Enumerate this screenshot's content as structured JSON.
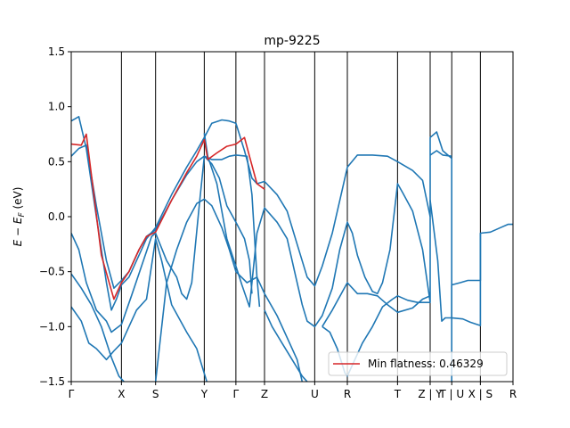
{
  "chart_data": {
    "type": "line",
    "title": "mp-9225",
    "xlabel": "",
    "ylabel": "E − E_F (eV)",
    "ylabel_parts": {
      "main": "E − E",
      "sub": "F",
      "unit": " (eV)"
    },
    "ylim": [
      -1.5,
      1.5
    ],
    "yticks": [
      -1.5,
      -1.0,
      -0.5,
      0.0,
      0.5,
      1.0,
      1.5
    ],
    "ytick_labels": [
      "−1.5",
      "−1.0",
      "−0.5",
      "0.0",
      "0.5",
      "1.0",
      "1.5"
    ],
    "xlim": [
      0,
      8.8
    ],
    "kpoints": [
      {
        "label": "Γ",
        "x": 0.0
      },
      {
        "label": "X",
        "x": 1.0
      },
      {
        "label": "S",
        "x": 1.68
      },
      {
        "label": "Y",
        "x": 2.65
      },
      {
        "label": "Γ",
        "x": 3.28
      },
      {
        "label": "Z",
        "x": 3.85
      },
      {
        "label": "U",
        "x": 4.85
      },
      {
        "label": "R",
        "x": 5.5
      },
      {
        "label": "T",
        "x": 6.5
      },
      {
        "label": "Z | Y",
        "x": 7.15
      },
      {
        "label": "T | U",
        "x": 7.58
      },
      {
        "label": "X | S",
        "x": 8.15
      },
      {
        "label": "R",
        "x": 8.8
      }
    ],
    "legend": {
      "entry": "Min flatness: 0.46329",
      "placement": "lower-right",
      "color": "#d62728"
    },
    "band_color": "#1f77b4",
    "highlight_color": "#d62728",
    "series": [
      {
        "values": [
          [
            0,
            0.87
          ],
          [
            0.15,
            0.91
          ],
          [
            0.3,
            0.62
          ],
          [
            0.5,
            0.0
          ],
          [
            0.7,
            -0.6
          ],
          [
            0.8,
            -0.85
          ],
          [
            0.9,
            -0.75
          ],
          [
            1.0,
            -0.62
          ],
          [
            1.15,
            -0.55
          ],
          [
            1.35,
            -0.35
          ],
          [
            1.5,
            -0.2
          ],
          [
            1.68,
            -0.1
          ],
          [
            2.0,
            0.2
          ],
          [
            2.3,
            0.45
          ],
          [
            2.5,
            0.6
          ],
          [
            2.65,
            0.72
          ],
          [
            2.8,
            0.85
          ],
          [
            3.0,
            0.88
          ],
          [
            3.15,
            0.87
          ],
          [
            3.28,
            0.85
          ],
          [
            3.45,
            0.6
          ],
          [
            3.6,
            0.35
          ],
          [
            3.7,
            0.3
          ],
          [
            3.85,
            0.32
          ],
          [
            4.1,
            0.2
          ],
          [
            4.3,
            0.05
          ],
          [
            4.5,
            -0.25
          ],
          [
            4.7,
            -0.55
          ],
          [
            4.85,
            -0.63
          ],
          [
            5.0,
            -0.45
          ],
          [
            5.2,
            -0.15
          ],
          [
            5.4,
            0.25
          ],
          [
            5.5,
            0.45
          ],
          [
            5.7,
            0.56
          ],
          [
            6.0,
            0.56
          ],
          [
            6.3,
            0.55
          ],
          [
            6.5,
            0.5
          ],
          [
            6.8,
            0.42
          ],
          [
            7.0,
            0.33
          ],
          [
            7.15,
            0.0
          ]
        ]
      },
      {
        "values": [
          [
            0,
            0.55
          ],
          [
            0.15,
            0.62
          ],
          [
            0.3,
            0.65
          ],
          [
            0.5,
            0.1
          ],
          [
            0.7,
            -0.4
          ],
          [
            0.85,
            -0.65
          ],
          [
            1.0,
            -0.58
          ],
          [
            1.15,
            -0.5
          ],
          [
            1.35,
            -0.3
          ],
          [
            1.5,
            -0.18
          ],
          [
            1.68,
            -0.12
          ],
          [
            2.0,
            0.15
          ],
          [
            2.3,
            0.38
          ],
          [
            2.5,
            0.5
          ],
          [
            2.65,
            0.55
          ],
          [
            2.8,
            0.52
          ],
          [
            3.0,
            0.52
          ],
          [
            3.15,
            0.55
          ],
          [
            3.28,
            0.56
          ],
          [
            3.5,
            0.55
          ],
          [
            3.6,
            0.2
          ],
          [
            3.7,
            -0.55
          ],
          [
            3.75,
            -0.82
          ]
        ]
      },
      {
        "values": [
          [
            0,
            -0.15
          ],
          [
            0.15,
            -0.3
          ],
          [
            0.3,
            -0.6
          ],
          [
            0.5,
            -0.85
          ],
          [
            0.7,
            -0.95
          ],
          [
            0.8,
            -1.05
          ],
          [
            1.0,
            -0.98
          ],
          [
            1.2,
            -0.72
          ],
          [
            1.4,
            -0.45
          ],
          [
            1.6,
            -0.18
          ],
          [
            1.68,
            -0.15
          ],
          [
            1.9,
            -0.4
          ],
          [
            2.1,
            -0.55
          ],
          [
            2.2,
            -0.7
          ],
          [
            2.3,
            -0.75
          ],
          [
            2.4,
            -0.6
          ],
          [
            2.55,
            0.1
          ],
          [
            2.65,
            0.55
          ],
          [
            2.8,
            0.48
          ],
          [
            2.95,
            0.35
          ],
          [
            3.1,
            0.1
          ],
          [
            3.28,
            -0.05
          ],
          [
            3.45,
            -0.2
          ],
          [
            3.55,
            -0.4
          ],
          [
            3.6,
            -0.7
          ]
        ]
      },
      {
        "values": [
          [
            0,
            -0.52
          ],
          [
            0.2,
            -0.65
          ],
          [
            0.4,
            -0.8
          ],
          [
            0.6,
            -1.0
          ],
          [
            0.8,
            -1.28
          ],
          [
            0.95,
            -1.45
          ],
          [
            1.05,
            -1.5
          ]
        ]
      },
      {
        "values": [
          [
            0,
            -0.82
          ],
          [
            0.2,
            -0.95
          ],
          [
            0.35,
            -1.15
          ],
          [
            0.5,
            -1.2
          ],
          [
            0.7,
            -1.3
          ],
          [
            0.85,
            -1.22
          ],
          [
            1.0,
            -1.15
          ],
          [
            1.15,
            -1.0
          ],
          [
            1.3,
            -0.85
          ],
          [
            1.5,
            -0.75
          ],
          [
            1.68,
            -0.2
          ],
          [
            1.8,
            -0.4
          ],
          [
            2.0,
            -0.8
          ],
          [
            2.3,
            -1.05
          ],
          [
            2.5,
            -1.2
          ],
          [
            2.6,
            -1.35
          ],
          [
            2.7,
            -1.5
          ]
        ]
      },
      {
        "values": [
          [
            1.68,
            -1.5
          ],
          [
            1.9,
            -0.6
          ],
          [
            2.1,
            -0.3
          ],
          [
            2.3,
            -0.05
          ],
          [
            2.5,
            0.12
          ],
          [
            2.65,
            0.16
          ],
          [
            2.8,
            0.1
          ],
          [
            3.0,
            -0.1
          ],
          [
            3.15,
            -0.3
          ],
          [
            3.28,
            -0.5
          ],
          [
            3.5,
            -0.6
          ],
          [
            3.7,
            -0.55
          ],
          [
            3.85,
            -0.7
          ],
          [
            4.1,
            -0.9
          ],
          [
            4.3,
            -1.1
          ],
          [
            4.5,
            -1.3
          ],
          [
            4.6,
            -1.5
          ]
        ]
      },
      {
        "values": [
          [
            2.65,
            0.76
          ],
          [
            2.72,
            0.55
          ],
          [
            2.9,
            0.3
          ],
          [
            3.1,
            -0.2
          ],
          [
            3.28,
            -0.45
          ],
          [
            3.4,
            -0.62
          ],
          [
            3.55,
            -0.82
          ],
          [
            3.6,
            -0.6
          ],
          [
            3.7,
            -0.15
          ],
          [
            3.85,
            0.08
          ],
          [
            4.1,
            -0.05
          ],
          [
            4.3,
            -0.2
          ],
          [
            4.45,
            -0.5
          ],
          [
            4.6,
            -0.8
          ],
          [
            4.7,
            -0.95
          ],
          [
            4.85,
            -1.0
          ],
          [
            5.0,
            -0.9
          ],
          [
            5.2,
            -0.65
          ],
          [
            5.35,
            -0.3
          ],
          [
            5.5,
            -0.05
          ],
          [
            5.6,
            -0.15
          ],
          [
            5.7,
            -0.35
          ],
          [
            5.85,
            -0.55
          ],
          [
            6.0,
            -0.68
          ],
          [
            6.1,
            -0.7
          ],
          [
            6.2,
            -0.6
          ],
          [
            6.35,
            -0.3
          ],
          [
            6.5,
            0.3
          ],
          [
            6.6,
            0.22
          ],
          [
            6.8,
            0.05
          ],
          [
            7.0,
            -0.3
          ],
          [
            7.15,
            -0.78
          ],
          [
            7.15,
            0.72
          ],
          [
            7.28,
            0.77
          ],
          [
            7.4,
            0.6
          ],
          [
            7.58,
            0.53
          ],
          [
            7.58,
            -1.5
          ]
        ]
      },
      {
        "values": [
          [
            3.85,
            -0.85
          ],
          [
            4.0,
            -1.0
          ],
          [
            4.2,
            -1.15
          ],
          [
            4.4,
            -1.3
          ],
          [
            4.6,
            -1.45
          ],
          [
            4.7,
            -1.5
          ]
        ]
      },
      {
        "values": [
          [
            5.0,
            -1.0
          ],
          [
            5.15,
            -1.05
          ],
          [
            5.3,
            -1.2
          ],
          [
            5.45,
            -1.42
          ],
          [
            5.5,
            -1.45
          ],
          [
            5.6,
            -1.35
          ],
          [
            5.8,
            -1.15
          ],
          [
            6.0,
            -1.0
          ],
          [
            6.2,
            -0.82
          ],
          [
            6.4,
            -0.75
          ],
          [
            6.5,
            -0.72
          ],
          [
            6.7,
            -0.76
          ],
          [
            6.9,
            -0.78
          ],
          [
            7.15,
            -0.78
          ]
        ]
      },
      {
        "values": [
          [
            5.0,
            -1.0
          ],
          [
            5.2,
            -0.85
          ],
          [
            5.5,
            -0.6
          ],
          [
            5.7,
            -0.7
          ],
          [
            5.9,
            -0.7
          ],
          [
            6.1,
            -0.72
          ],
          [
            6.3,
            -0.8
          ],
          [
            6.5,
            -0.87
          ],
          [
            6.8,
            -0.83
          ],
          [
            7.0,
            -0.75
          ],
          [
            7.15,
            -0.72
          ]
        ]
      },
      {
        "values": [
          [
            7.15,
            0.56
          ],
          [
            7.28,
            0.6
          ],
          [
            7.4,
            0.56
          ],
          [
            7.58,
            0.55
          ]
        ]
      },
      {
        "values": [
          [
            7.15,
            0.15
          ],
          [
            7.3,
            -0.4
          ],
          [
            7.38,
            -0.95
          ],
          [
            7.45,
            -0.92
          ],
          [
            7.58,
            -0.92
          ],
          [
            7.58,
            -0.62
          ],
          [
            7.75,
            -0.6
          ],
          [
            7.9,
            -0.58
          ],
          [
            8.15,
            -0.58
          ],
          [
            8.15,
            -0.15
          ],
          [
            8.35,
            -0.14
          ],
          [
            8.55,
            -0.1
          ],
          [
            8.7,
            -0.07
          ],
          [
            8.8,
            -0.07
          ]
        ]
      },
      {
        "values": [
          [
            7.58,
            -0.92
          ],
          [
            7.8,
            -0.93
          ],
          [
            7.95,
            -0.96
          ],
          [
            8.15,
            -0.99
          ],
          [
            8.15,
            -0.15
          ]
        ]
      }
    ],
    "highlight": [
      [
        0,
        0.66
      ],
      [
        0.2,
        0.65
      ],
      [
        0.3,
        0.75
      ],
      [
        0.45,
        0.2
      ],
      [
        0.6,
        -0.35
      ],
      [
        0.85,
        -0.75
      ],
      [
        1.0,
        -0.6
      ],
      [
        1.15,
        -0.5
      ],
      [
        1.35,
        -0.3
      ],
      [
        1.5,
        -0.18
      ],
      [
        1.68,
        -0.14
      ],
      [
        2.0,
        0.15
      ],
      [
        2.3,
        0.4
      ],
      [
        2.5,
        0.55
      ],
      [
        2.65,
        0.7
      ],
      [
        2.72,
        0.52
      ],
      [
        2.9,
        0.58
      ],
      [
        3.1,
        0.64
      ],
      [
        3.28,
        0.66
      ],
      [
        3.45,
        0.72
      ],
      [
        3.55,
        0.55
      ],
      [
        3.7,
        0.3
      ],
      [
        3.85,
        0.25
      ]
    ]
  }
}
